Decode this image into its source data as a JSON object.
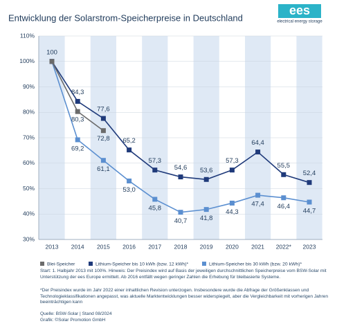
{
  "chart_data": {
    "type": "line",
    "title": "Entwicklung der Solarstrom-Speicherpreise in Deutschland",
    "logo": {
      "text": "ees",
      "subtitle": "electrical energy storage"
    },
    "categories": [
      "2013",
      "2014",
      "2015",
      "2016",
      "2017",
      "2018",
      "2019",
      "2020",
      "2021",
      "2022*",
      "2023"
    ],
    "series": [
      {
        "name": "Blei-Speicher",
        "color": "#6b6b6b",
        "values": [
          100,
          80.3,
          72.8,
          null,
          null,
          null,
          null,
          null,
          null,
          null,
          null
        ],
        "value_labels": [
          null,
          "80,3",
          "72,8",
          null,
          null,
          null,
          null,
          null,
          null,
          null,
          null
        ]
      },
      {
        "name": "Lithium-Speicher bis 10 kWh (bzw. 12 kWh)*",
        "color": "#1f3a7a",
        "values": [
          100,
          84.3,
          77.6,
          65.2,
          57.3,
          54.6,
          53.6,
          57.3,
          64.4,
          55.5,
          52.4
        ],
        "value_labels": [
          "100",
          "84,3",
          "77,6",
          "65,2",
          "57,3",
          "54,6",
          "53,6",
          "57,3",
          "64,4",
          "55,5",
          "52,4"
        ]
      },
      {
        "name": "Lithium-Speicher bis 30 kWh (bzw. 20 kWh)*",
        "color": "#5b8fd0",
        "values": [
          100,
          69.2,
          61.1,
          53.0,
          45.8,
          40.7,
          41.8,
          44.3,
          47.4,
          46.4,
          44.7
        ],
        "value_labels": [
          null,
          "69,2",
          "61,1",
          "53,0",
          "45,8",
          "40,7",
          "41,8",
          "44,3",
          "47,4",
          "46,4",
          "44,7"
        ]
      }
    ],
    "ylim": [
      30,
      110
    ],
    "yticks": [
      {
        "value": 30,
        "label": "30%"
      },
      {
        "value": 40,
        "label": "40%"
      },
      {
        "value": 50,
        "label": "50%"
      },
      {
        "value": 60,
        "label": "60%"
      },
      {
        "value": 70,
        "label": "70%"
      },
      {
        "value": 80,
        "label": "80%"
      },
      {
        "value": 90,
        "label": "90%"
      },
      {
        "value": 100,
        "label": "100%"
      },
      {
        "value": 110,
        "label": "110%"
      }
    ],
    "grid": true,
    "notes": [
      "Start: 1. Halbjahr 2013 mit 100%. Hinweis: Der Preisindex wird auf Basis der jeweiligen durchschnittlichen Speicherpreise vom BSW-Solar mit Unterstützung der ees Europe ermittelt. Ab 2016 entfällt wegen geringer Zahlen die Erhebung für bleibasierte Systeme.",
      "*Der Preisindex wurde im Jahr 2022 einer inhaltlichen Revision unterzogen. Insbesondere wurde die Abfrage der Größenklassen und Technologieklassifikationen angepasst, was aktuelle Marktentwicklungen besser widerspiegelt, aber die Vergleichbarkeit mit vorherigen Jahren beeinträchtigen kann"
    ],
    "source": [
      "Quelle: BSW-Solar | Stand 08/2024",
      "Grafik: ©Solar Promotion GmbH"
    ]
  }
}
